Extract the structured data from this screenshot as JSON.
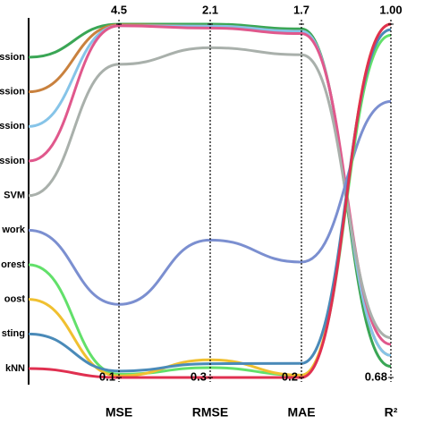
{
  "chart_data": {
    "type": "parallel",
    "categories": [
      "MSE",
      "RMSE",
      "MAE",
      "R²"
    ],
    "axes": [
      {
        "lim": [
          0.1,
          4.5
        ],
        "ticks": [
          0.1,
          4.5
        ]
      },
      {
        "lim": [
          0.3,
          2.1
        ],
        "ticks": [
          0.3,
          2.1
        ]
      },
      {
        "lim": [
          0.2,
          1.7
        ],
        "ticks": [
          0.2,
          1.7
        ]
      },
      {
        "lim": [
          0.68,
          1
        ],
        "ticks": [
          0.68,
          {
            "value": 1,
            "label": "1.00"
          }
        ]
      }
    ],
    "series": [
      {
        "name": "ssion",
        "color": "#3aa655",
        "values": [
          4.5,
          2.1,
          1.68,
          0.69
        ]
      },
      {
        "name": "ssion",
        "color": "#c9813e",
        "values": [
          4.49,
          2.09,
          1.67,
          0.7
        ]
      },
      {
        "name": "ssion",
        "color": "#86c4e8",
        "values": [
          4.48,
          2.09,
          1.67,
          0.7
        ]
      },
      {
        "name": "ssion",
        "color": "#e0588c",
        "values": [
          4.48,
          2.08,
          1.66,
          0.71
        ]
      },
      {
        "name": "SVM",
        "color": "#a9b0ab",
        "values": [
          4.0,
          1.98,
          1.57,
          0.716
        ]
      },
      {
        "name": "work",
        "color": "#7b8fd0",
        "values": [
          1.01,
          1.0,
          0.69,
          0.93
        ]
      },
      {
        "name": "orest",
        "color": "#62e06a",
        "values": [
          0.14,
          0.35,
          0.21,
          0.99
        ]
      },
      {
        "name": "oost",
        "color": "#f0c030",
        "values": [
          0.12,
          0.39,
          0.21,
          1.0
        ]
      },
      {
        "name": "sting",
        "color": "#4a8ab8",
        "values": [
          0.18,
          0.37,
          0.26,
          0.995
        ]
      },
      {
        "name": "kNN",
        "color": "#e03050",
        "values": [
          0.1,
          0.3,
          0.2,
          1.0
        ]
      }
    ]
  }
}
